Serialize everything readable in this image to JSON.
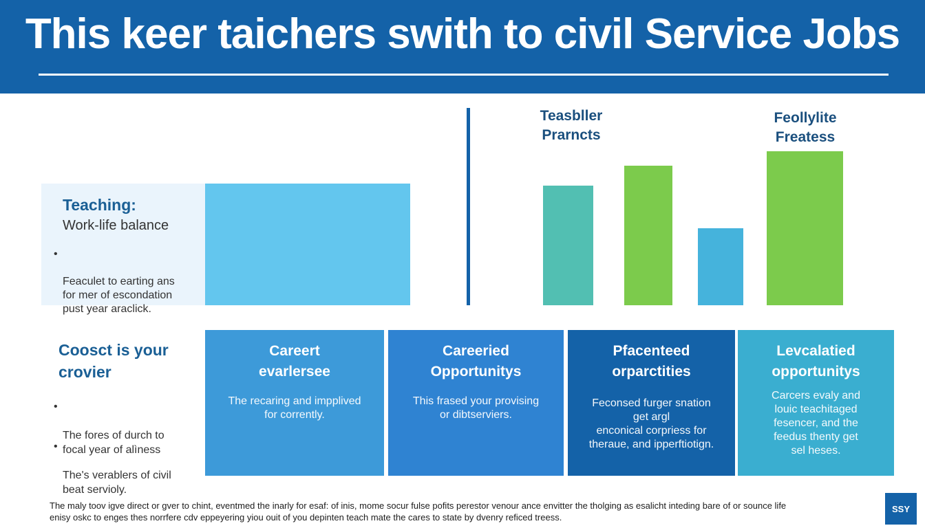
{
  "header": {
    "title": "This keer taichers swith to civil Service Jobs"
  },
  "teaching_panel": {
    "title": "Teaching:",
    "subtitle": "Work-life balance",
    "bullet": "Feaculet to earting ans\nfor mer of escondation\npust year araclick."
  },
  "bars": {
    "label_left": "Teasbller\nPrarncts",
    "label_right": "Feollylite\nFreatess",
    "level_teaching": 1.0,
    "levels": [
      0.985,
      1.147,
      0.635,
      1.264
    ],
    "colors": [
      "#52bfb2",
      "#7ccb4c",
      "#45b3dc",
      "#7ccb4c",
      "#63c6ee"
    ]
  },
  "lower_left": {
    "title": "Coosct is your\ncrovier",
    "bullets": [
      "The fores of durch to\nfocal year of alìness",
      "The's verablers of civil\nbeat servioly."
    ]
  },
  "cards": [
    {
      "title": "Careert\nevarlersee",
      "body": "The recaring and impplived\nfor corrently.",
      "color": "#3d9ad9"
    },
    {
      "title": "Careeried\nOpportunitys",
      "body": "This frased your provising\nor dibtserviers.",
      "color": "#2f83d2"
    },
    {
      "title": "Pfacenteed\norparctities",
      "body": "Feconsed furger snation\nget argl\nenconical corpriess for\ntheraue, and ipperftiotign.",
      "color": "#1462a8"
    },
    {
      "title": "Levcalatied\nopportunitys",
      "body": "Carcers evaly and\nlouic teachitaged\nfesencer, and the\nfeedus thenty get\nsel heses.",
      "color": "#3aaed0"
    }
  ],
  "footer": {
    "text": "The maly toov igve direct or gver to chint, eventmed the inarly for esaf: of inis, mome socur fulse pofits perestor venour ance envitter the tholging as esalicht inteding bare of or sounce life\nenisy oskc to enges thes norrfere cdv eppeyering yiou ouit of you depinten teach mate the cares to state by dvenry reficed treess.",
    "badge": "SSY"
  }
}
